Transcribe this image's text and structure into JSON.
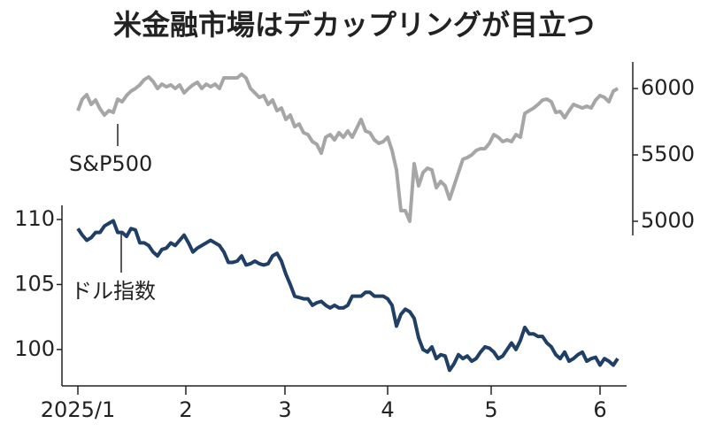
{
  "chart_data": {
    "type": "line",
    "title": "米金融市場はデカップリングが目立つ",
    "x": [
      0,
      1,
      2,
      3,
      4,
      5,
      6,
      7,
      8,
      9,
      10,
      11,
      12,
      13,
      14,
      15,
      16,
      17,
      18,
      19,
      20,
      21,
      22,
      23,
      24,
      25,
      26,
      27,
      28,
      29,
      30,
      31,
      32,
      33,
      34,
      35,
      36,
      37,
      38,
      39,
      40,
      41,
      42,
      43,
      44,
      45,
      46,
      47,
      48,
      49,
      50,
      51,
      52,
      53,
      54,
      55,
      56,
      57,
      58,
      59,
      60,
      61,
      62,
      63,
      64,
      65,
      66,
      67,
      68,
      69,
      70,
      71,
      72,
      73,
      74,
      75,
      76,
      77,
      78,
      79,
      80,
      81,
      82,
      83,
      84,
      85,
      86,
      87,
      88,
      89,
      90,
      91,
      92,
      93,
      94,
      95,
      96,
      97,
      98,
      99,
      100,
      101,
      102,
      103,
      104,
      105,
      106,
      107,
      108,
      109,
      110,
      111,
      112,
      113,
      114,
      115,
      116,
      117,
      118,
      119,
      120,
      121,
      122
    ],
    "xlim": [
      -3.6,
      124
    ],
    "xticks": [
      {
        "value": 0,
        "label": "2025/1"
      },
      {
        "value": 24.4,
        "label": "2"
      },
      {
        "value": 46.8,
        "label": "3"
      },
      {
        "value": 70,
        "label": "4"
      },
      {
        "value": 93.4,
        "label": "5"
      },
      {
        "value": 118,
        "label": "6"
      }
    ],
    "ylim": [
      97.2,
      111
    ],
    "yticks": [
      100,
      105,
      110
    ],
    "y2lim": [
      4900,
      6200
    ],
    "y2ticks": [
      5000,
      5500,
      6000
    ],
    "series": [
      {
        "name": "S&P500",
        "color": "#a6a6a6",
        "axis": "y2",
        "values": [
          5833,
          5920,
          5953,
          5880,
          5913,
          5847,
          5800,
          5833,
          5820,
          5920,
          5900,
          5947,
          5980,
          6000,
          6027,
          6067,
          6087,
          6053,
          6000,
          6033,
          6013,
          6027,
          6000,
          6027,
          5967,
          6000,
          6027,
          6047,
          6000,
          6033,
          6013,
          6033,
          6000,
          6080,
          6080,
          6080,
          6080,
          6107,
          6080,
          6000,
          5967,
          5933,
          5947,
          5880,
          5913,
          5833,
          5853,
          5767,
          5800,
          5713,
          5733,
          5667,
          5653,
          5600,
          5580,
          5513,
          5633,
          5653,
          5613,
          5667,
          5633,
          5680,
          5633,
          5700,
          5767,
          5680,
          5667,
          5613,
          5587,
          5600,
          5633,
          5533,
          5387,
          5080,
          5080,
          5000,
          5433,
          5267,
          5367,
          5400,
          5387,
          5253,
          5300,
          5267,
          5167,
          5267,
          5367,
          5467,
          5480,
          5500,
          5533,
          5547,
          5547,
          5587,
          5653,
          5633,
          5600,
          5613,
          5600,
          5653,
          5633,
          5813,
          5833,
          5853,
          5880,
          5913,
          5920,
          5900,
          5820,
          5827,
          5780,
          5833,
          5880,
          5867,
          5853,
          5867,
          5853,
          5913,
          5947,
          5933,
          5900,
          5980,
          6000
        ]
      },
      {
        "name": "ドル指数",
        "color": "#1f3f66",
        "values": [
          109.3,
          108.8,
          108.4,
          108.6,
          109.0,
          109.0,
          109.5,
          109.7,
          109.9,
          109.0,
          109.0,
          108.7,
          109.3,
          109.2,
          108.2,
          108.2,
          108.0,
          107.5,
          107.2,
          107.7,
          107.8,
          108.2,
          108.0,
          108.4,
          108.8,
          108.2,
          107.5,
          107.8,
          108.0,
          108.2,
          108.4,
          108.2,
          108.0,
          107.5,
          106.7,
          106.7,
          106.8,
          107.2,
          106.5,
          106.6,
          106.8,
          106.6,
          106.5,
          106.6,
          107.2,
          107.4,
          106.8,
          105.8,
          105.0,
          104.1,
          104.0,
          103.9,
          103.9,
          103.4,
          103.6,
          103.7,
          103.4,
          103.2,
          103.4,
          103.2,
          103.2,
          103.4,
          104.1,
          104.1,
          104.1,
          104.4,
          104.4,
          104.1,
          104.1,
          104.1,
          103.9,
          103.4,
          101.8,
          102.7,
          103.1,
          102.9,
          102.4,
          100.9,
          100.0,
          99.8,
          100.2,
          99.3,
          99.6,
          99.5,
          98.4,
          98.9,
          99.6,
          99.3,
          99.5,
          99.1,
          99.3,
          99.8,
          100.2,
          100.1,
          99.8,
          99.3,
          99.5,
          100.0,
          100.5,
          100.0,
          100.7,
          101.7,
          101.2,
          101.2,
          101.0,
          101.0,
          100.5,
          100.2,
          99.6,
          99.3,
          99.8,
          99.1,
          99.3,
          99.6,
          99.8,
          99.1,
          99.3,
          99.4,
          98.8,
          99.3,
          99.1,
          98.8,
          99.3
        ]
      }
    ]
  }
}
